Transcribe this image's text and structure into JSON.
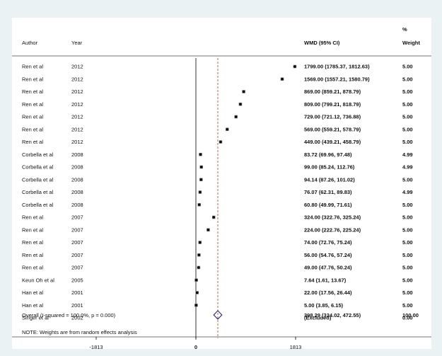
{
  "chart_data": {
    "type": "forest",
    "headers": {
      "author": "Author",
      "year": "Year",
      "effect": "WMD (95% CI)",
      "weight_pct": "%",
      "weight": "Weight"
    },
    "x_ticks": [
      {
        "value": -1813,
        "label": "-1813"
      },
      {
        "value": 0,
        "label": "0"
      },
      {
        "value": 1813,
        "label": "1813"
      }
    ],
    "xlim": [
      -1813,
      1813
    ],
    "studies": [
      {
        "author": "Ren et al",
        "year": "2012",
        "effect": 1799.0,
        "lower": 1785.37,
        "upper": 1812.63,
        "ci_text": "1799.00 (1785.37, 1812.63)",
        "weight": "5.00"
      },
      {
        "author": "Ren et al",
        "year": "2012",
        "effect": 1569.0,
        "lower": 1557.21,
        "upper": 1580.79,
        "ci_text": "1569.00 (1557.21, 1580.79)",
        "weight": "5.00"
      },
      {
        "author": "Ren et al",
        "year": "2012",
        "effect": 869.0,
        "lower": 859.21,
        "upper": 878.79,
        "ci_text": "869.00 (859.21, 878.79)",
        "weight": "5.00"
      },
      {
        "author": "Ren et al",
        "year": "2012",
        "effect": 809.0,
        "lower": 799.21,
        "upper": 818.79,
        "ci_text": "809.00 (799.21, 818.79)",
        "weight": "5.00"
      },
      {
        "author": "Ren et al",
        "year": "2012",
        "effect": 729.0,
        "lower": 721.12,
        "upper": 736.88,
        "ci_text": "729.00 (721.12, 736.88)",
        "weight": "5.00"
      },
      {
        "author": "Ren et al",
        "year": "2012",
        "effect": 569.0,
        "lower": 559.21,
        "upper": 578.79,
        "ci_text": "569.00 (559.21, 578.79)",
        "weight": "5.00"
      },
      {
        "author": "Ren et al",
        "year": "2012",
        "effect": 449.0,
        "lower": 439.21,
        "upper": 458.79,
        "ci_text": "449.00 (439.21, 458.79)",
        "weight": "5.00"
      },
      {
        "author": "Corbella et al",
        "year": "2008",
        "effect": 83.72,
        "lower": 69.96,
        "upper": 97.48,
        "ci_text": "83.72 (69.96, 97.48)",
        "weight": "4.99"
      },
      {
        "author": "Corbella et al",
        "year": "2008",
        "effect": 99.0,
        "lower": 85.24,
        "upper": 112.76,
        "ci_text": "99.00 (85.24, 112.76)",
        "weight": "4.99"
      },
      {
        "author": "Corbella et al",
        "year": "2008",
        "effect": 94.14,
        "lower": 87.26,
        "upper": 101.02,
        "ci_text": "94.14 (87.26, 101.02)",
        "weight": "5.00"
      },
      {
        "author": "Corbella et al",
        "year": "2008",
        "effect": 76.07,
        "lower": 62.31,
        "upper": 89.83,
        "ci_text": "76.07 (62.31, 89.83)",
        "weight": "4.99"
      },
      {
        "author": "Corbella et al",
        "year": "2008",
        "effect": 60.8,
        "lower": 49.99,
        "upper": 71.61,
        "ci_text": "60.80 (49.99, 71.61)",
        "weight": "5.00"
      },
      {
        "author": "Ren et al",
        "year": "2007",
        "effect": 324.0,
        "lower": 322.76,
        "upper": 325.24,
        "ci_text": "324.00 (322.76, 325.24)",
        "weight": "5.00"
      },
      {
        "author": "Ren et al",
        "year": "2007",
        "effect": 224.0,
        "lower": 222.76,
        "upper": 225.24,
        "ci_text": "224.00 (222.76, 225.24)",
        "weight": "5.00"
      },
      {
        "author": "Ren et al",
        "year": "2007",
        "effect": 74.0,
        "lower": 72.76,
        "upper": 75.24,
        "ci_text": "74.00 (72.76, 75.24)",
        "weight": "5.00"
      },
      {
        "author": "Ren et al",
        "year": "2007",
        "effect": 56.0,
        "lower": 54.76,
        "upper": 57.24,
        "ci_text": "56.00 (54.76, 57.24)",
        "weight": "5.00"
      },
      {
        "author": "Ren et al",
        "year": "2007",
        "effect": 49.0,
        "lower": 47.76,
        "upper": 50.24,
        "ci_text": "49.00 (47.76, 50.24)",
        "weight": "5.00"
      },
      {
        "author": "Keun Oh et al",
        "year": "2005",
        "effect": 7.64,
        "lower": 1.61,
        "upper": 13.67,
        "ci_text": "7.64 (1.61, 13.67)",
        "weight": "5.00"
      },
      {
        "author": "Han et al",
        "year": "2001",
        "effect": 22.0,
        "lower": 17.56,
        "upper": 26.44,
        "ci_text": "22.00 (17.56, 26.44)",
        "weight": "5.00"
      },
      {
        "author": "Han et al",
        "year": "2001",
        "effect": 5.0,
        "lower": 3.85,
        "upper": 6.15,
        "ci_text": "5.00 (3.85, 6.15)",
        "weight": "5.00"
      },
      {
        "author": "Singer et al",
        "year": "2002",
        "effect": null,
        "lower": null,
        "upper": null,
        "ci_text": "(Excluded)",
        "weight": "0.00"
      }
    ],
    "overall": {
      "label": "Overall  (I-squared = 100.0%, p = 0.000)",
      "effect": 398.29,
      "lower": 324.02,
      "upper": 472.55,
      "ci_text": "398.29 (324.02, 472.55)",
      "weight": "100.00"
    },
    "note": "NOTE: Weights are from random effects analysis",
    "colors": {
      "background": "#eaf2f3",
      "panel": "#ffffff",
      "overall_line": "#c0392b",
      "diamond": "#1a237e"
    }
  }
}
